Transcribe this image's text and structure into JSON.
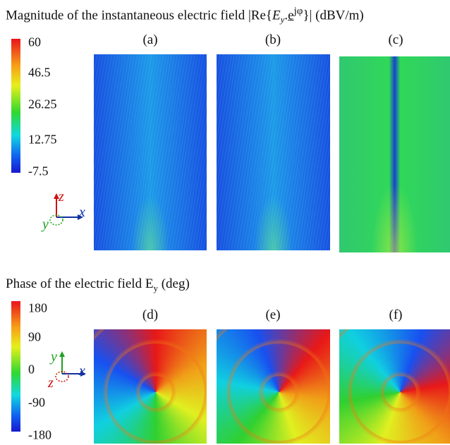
{
  "magnitude": {
    "title": {
      "text": "Magnitude of the instantaneous electric field |Re{",
      "field": "E",
      "sub": "y",
      "dot": ".",
      "exp_base": "e",
      "exp": "jφ",
      "tail": "}| (dBV/m)"
    },
    "colorbar_labels": [
      "60",
      "46.5",
      "26.25",
      "12.75",
      "-7.5"
    ],
    "panels": [
      "(a)",
      "(b)",
      "(c)"
    ],
    "axes": {
      "z": "z",
      "x": "x",
      "y": "y"
    }
  },
  "phase": {
    "title": {
      "text": "Phase of the electric field E",
      "sub": "y",
      "tail": " (deg)"
    },
    "colorbar_labels": [
      "180",
      "90",
      "0",
      "-90",
      "-180"
    ],
    "panels": [
      "(d)",
      "(e)",
      "(f)"
    ],
    "axes": {
      "y": "y",
      "x": "x",
      "z": "z"
    }
  }
}
